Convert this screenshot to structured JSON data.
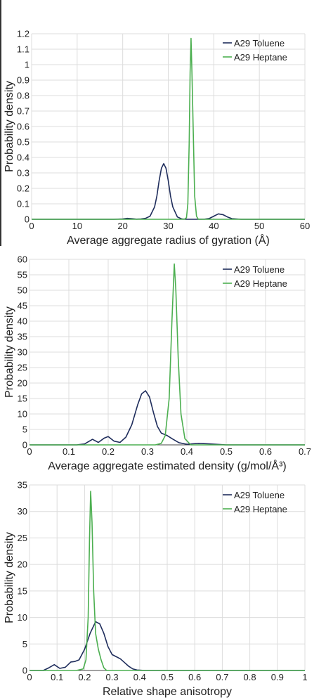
{
  "chart_data": [
    {
      "type": "line",
      "xlabel": "Average aggregate radius of gyration (Å)",
      "ylabel": "Probability density",
      "xlim": [
        0,
        60
      ],
      "ylim": [
        0,
        1.2
      ],
      "xticks": [
        "0",
        "10",
        "20",
        "30",
        "40",
        "50",
        "60"
      ],
      "yticks": [
        "0",
        "0.1",
        "0.2",
        "0.3",
        "0.4",
        "0.5",
        "0.6",
        "0.7",
        "0.8",
        "0.9",
        "1",
        "1.1",
        "1.2"
      ],
      "grid": true,
      "legend_position": "top-right",
      "series": [
        {
          "name": "A29 Toluene",
          "color": "#1f2d5c",
          "x": [
            0,
            18,
            20,
            21,
            22,
            23,
            24,
            25,
            26,
            27,
            27.5,
            28,
            28.5,
            29,
            29.5,
            30,
            30.5,
            31,
            32,
            33,
            34,
            36,
            38,
            39,
            40,
            41,
            42,
            43,
            44,
            46,
            50,
            60
          ],
          "y": [
            0,
            0,
            0.002,
            0.006,
            0.004,
            0.001,
            0.002,
            0.006,
            0.02,
            0.08,
            0.15,
            0.25,
            0.33,
            0.36,
            0.33,
            0.25,
            0.15,
            0.08,
            0.015,
            0.002,
            0,
            0,
            0.001,
            0.005,
            0.02,
            0.035,
            0.03,
            0.015,
            0.004,
            0,
            0,
            0
          ]
        },
        {
          "name": "A29 Heptane",
          "color": "#4caf50",
          "x": [
            0,
            33.5,
            34.0,
            34.3,
            34.6,
            34.8,
            35.0,
            35.2,
            35.5,
            35.8,
            36.2,
            36.6,
            60
          ],
          "y": [
            0,
            0,
            0.01,
            0.1,
            0.5,
            0.95,
            1.17,
            0.95,
            0.55,
            0.15,
            0.02,
            0,
            0
          ]
        }
      ]
    },
    {
      "type": "line",
      "xlabel": "Average aggregate estimated density (g/mol/Å³)",
      "ylabel": "Probability density",
      "xlim": [
        0,
        0.7
      ],
      "ylim": [
        0,
        60
      ],
      "xticks": [
        "0",
        "0.1",
        "0.2",
        "0.3",
        "0.4",
        "0.5",
        "0.6",
        "0.7"
      ],
      "yticks": [
        "0",
        "5",
        "10",
        "15",
        "20",
        "25",
        "30",
        "35",
        "40",
        "45",
        "50",
        "55",
        "60"
      ],
      "grid": true,
      "legend_position": "top-right",
      "series": [
        {
          "name": "A29 Toluene",
          "color": "#1f2d5c",
          "x": [
            0,
            0.12,
            0.14,
            0.16,
            0.175,
            0.19,
            0.2,
            0.215,
            0.23,
            0.245,
            0.26,
            0.275,
            0.285,
            0.295,
            0.305,
            0.315,
            0.325,
            0.335,
            0.35,
            0.365,
            0.38,
            0.4,
            0.43,
            0.46,
            0.5,
            0.7
          ],
          "y": [
            0,
            0,
            0.3,
            1.8,
            0.8,
            2.2,
            2.7,
            1.2,
            0.8,
            2.5,
            6.5,
            13.0,
            16.5,
            17.5,
            15.5,
            10.5,
            6.0,
            3.8,
            3.0,
            1.8,
            0.7,
            0.2,
            0.5,
            0.3,
            0,
            0
          ]
        },
        {
          "name": "A29 Heptane",
          "color": "#4caf50",
          "x": [
            0,
            0.32,
            0.335,
            0.345,
            0.355,
            0.362,
            0.368,
            0.372,
            0.378,
            0.385,
            0.395,
            0.41,
            0.7
          ],
          "y": [
            0,
            0,
            0.5,
            3.0,
            15.0,
            40.0,
            58.5,
            50.0,
            28.0,
            10.0,
            2.0,
            0,
            0
          ]
        }
      ]
    },
    {
      "type": "line",
      "xlabel": "Relative shape anisotropy",
      "ylabel": "Probability density",
      "xlim": [
        0,
        1
      ],
      "ylim": [
        0,
        35
      ],
      "xticks": [
        "0",
        "0.1",
        "0.2",
        "0.3",
        "0.4",
        "0.5",
        "0.6",
        "0.7",
        "0.8",
        "0.9",
        "1"
      ],
      "yticks": [
        "0",
        "5",
        "10",
        "15",
        "20",
        "25",
        "30",
        "35"
      ],
      "grid": true,
      "legend_position": "top-right",
      "series": [
        {
          "name": "A29 Toluene",
          "color": "#1f2d5c",
          "x": [
            0,
            0.05,
            0.07,
            0.09,
            0.11,
            0.13,
            0.15,
            0.165,
            0.18,
            0.2,
            0.22,
            0.24,
            0.255,
            0.27,
            0.285,
            0.3,
            0.315,
            0.33,
            0.345,
            0.36,
            0.375,
            0.39,
            0.42,
            1
          ],
          "y": [
            0,
            0,
            0.5,
            1.1,
            0.4,
            0.6,
            1.6,
            1.7,
            2.0,
            4.0,
            7.0,
            9.2,
            8.8,
            7.0,
            4.5,
            3.0,
            2.6,
            2.2,
            1.5,
            0.8,
            0.3,
            0.1,
            0,
            0
          ]
        },
        {
          "name": "A29 Heptane",
          "color": "#4caf50",
          "x": [
            0,
            0.17,
            0.195,
            0.205,
            0.213,
            0.218,
            0.222,
            0.227,
            0.233,
            0.24,
            0.25,
            0.26,
            0.27,
            0.28,
            1
          ],
          "y": [
            0,
            0,
            0.3,
            2.0,
            10.0,
            25.0,
            33.8,
            28.0,
            15.0,
            7.0,
            4.0,
            2.0,
            0.5,
            0,
            0
          ]
        }
      ]
    }
  ]
}
